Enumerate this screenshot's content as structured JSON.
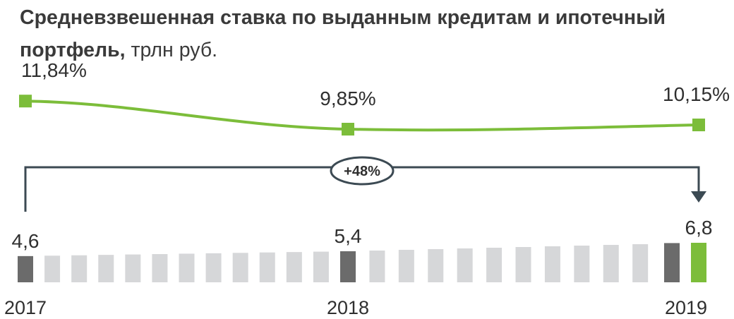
{
  "title": {
    "bold": "Средневзвешенная ставка по выданным кредитам и ипотечный портфель,",
    "unit": "трлн руб."
  },
  "colors": {
    "line": "#7cbd3a",
    "bar_year": "#6b6b6b",
    "bar_month": "#d6d7d9",
    "bar_current": "#7cbd3a",
    "text": "#2f2f2f",
    "connector": "#3c4a53"
  },
  "chart_data": [
    {
      "type": "line",
      "title": "Средневзвешенная ставка по выданным кредитам",
      "x": [
        "2017",
        "2018",
        "2019"
      ],
      "values": [
        11.84,
        9.85,
        10.15
      ],
      "labels": [
        "11,84%",
        "9,85%",
        "10,15%"
      ]
    },
    {
      "type": "bar",
      "title": "Ипотечный портфель",
      "unit": "трлн руб.",
      "categories": [
        "2017",
        "2018",
        "2019"
      ],
      "values": [
        4.6,
        5.4,
        6.8
      ],
      "labels": [
        "4,6",
        "5,4",
        "6,8"
      ],
      "monthly_bars_between_years": 11,
      "annotation": "+48%"
    }
  ]
}
